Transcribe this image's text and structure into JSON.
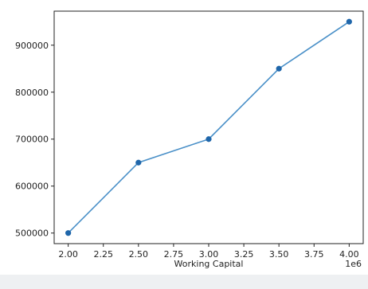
{
  "chart_data": {
    "type": "line",
    "title": "",
    "xlabel": "Working Capital",
    "ylabel": "",
    "x_offset_label": "1e6",
    "x": [
      2.0,
      2.5,
      3.0,
      3.5,
      4.0
    ],
    "series": [
      {
        "values": [
          500000,
          650000,
          700000,
          850000,
          950000
        ]
      }
    ],
    "x_ticks": [
      2.0,
      2.25,
      2.5,
      2.75,
      3.0,
      3.25,
      3.5,
      3.75,
      4.0
    ],
    "x_tick_labels": [
      "2.00",
      "2.25",
      "2.50",
      "2.75",
      "3.00",
      "3.25",
      "3.50",
      "3.75",
      "4.00"
    ],
    "y_ticks": [
      500000,
      600000,
      700000,
      800000,
      900000
    ],
    "y_tick_labels": [
      "500000",
      "600000",
      "700000",
      "800000",
      "900000"
    ],
    "xlim": [
      1.9,
      4.1
    ],
    "ylim": [
      477500,
      972500
    ],
    "grid": false,
    "line_color": "#4a90c8",
    "marker_color": "#1f66aa"
  }
}
